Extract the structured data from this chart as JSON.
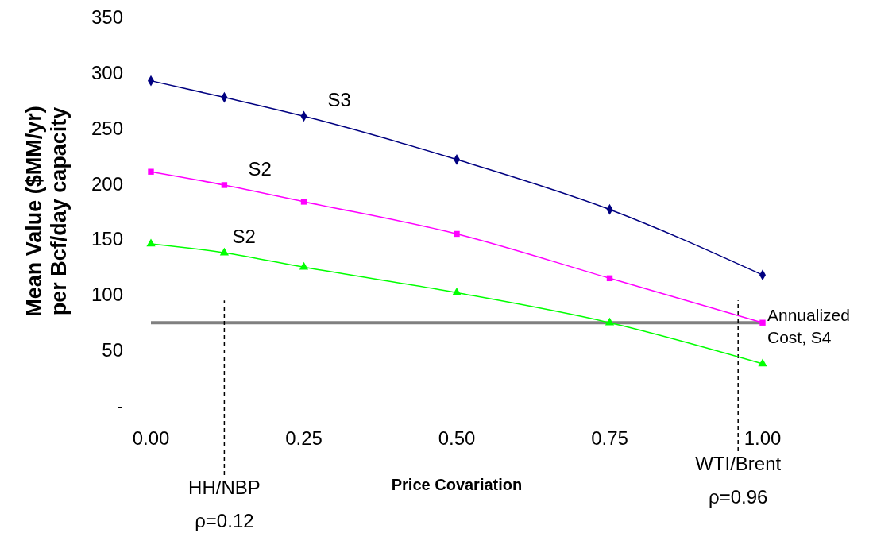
{
  "chart_data": {
    "type": "line",
    "xlabel": "Price Covariation",
    "ylabel": "Mean Value ($MM/yr) per Bcf/day capacity",
    "xlim": [
      0,
      1
    ],
    "xticks": [
      {
        "value": 0,
        "label": "0.00"
      },
      {
        "value": 0.25,
        "label": "0.25"
      },
      {
        "value": 0.5,
        "label": "0.50"
      },
      {
        "value": 0.75,
        "label": "0.75"
      },
      {
        "value": 1,
        "label": "1.00"
      }
    ],
    "ylim": [
      0,
      350
    ],
    "yticks": [
      {
        "value": 0,
        "label": "-"
      },
      50,
      100,
      150,
      200,
      250,
      300,
      350
    ],
    "x": [
      0,
      0.12,
      0.25,
      0.5,
      0.75,
      1
    ],
    "series": [
      {
        "name": "S3",
        "color": "#000080",
        "marker": "diamond",
        "values": [
          293,
          278,
          261,
          222,
          177,
          118
        ]
      },
      {
        "name": "S2",
        "color": "#ff00ff",
        "marker": "square",
        "values": [
          211,
          199,
          184,
          155,
          115,
          75
        ]
      },
      {
        "name": "S2",
        "color": "#00ff00",
        "marker": "triangle",
        "values": [
          146,
          138,
          125,
          102,
          75,
          38
        ]
      }
    ],
    "ref_lines": [
      {
        "axis": "y",
        "value": 75,
        "label": "Annualized Cost, S4",
        "color": "#808080",
        "line_style": "solid"
      },
      {
        "axis": "x",
        "value": 0.12,
        "label": "HH/NBP ρ=0.12",
        "color": "#000000",
        "line_style": "dashed"
      },
      {
        "axis": "x",
        "value": 0.96,
        "label": "WTI/Brent ρ=0.96",
        "color": "#000000",
        "line_style": "dashed"
      }
    ],
    "grid": false
  }
}
